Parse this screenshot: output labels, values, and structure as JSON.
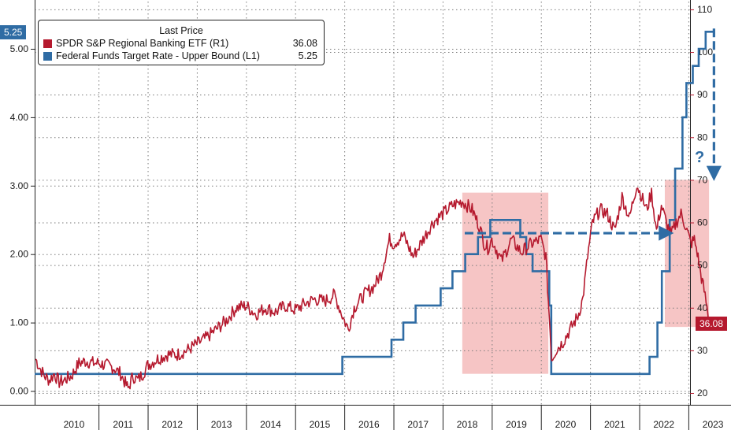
{
  "chart_data": {
    "type": "line",
    "legend": {
      "title": "Last Price",
      "placement": "top-left",
      "entries": [
        {
          "name": "SPDR S&P Regional Banking ETF  (R1)",
          "value": "36.08",
          "color": "#b5192e"
        },
        {
          "name": "Federal Funds Target Rate - Upper Bound  (L1)",
          "value": "5.25",
          "color": "#2f6ca4"
        }
      ]
    },
    "x_labels": [
      "2010",
      "2011",
      "2012",
      "2013",
      "2014",
      "2015",
      "2016",
      "2017",
      "2018",
      "2019",
      "2020",
      "2021",
      "2022",
      "2023"
    ],
    "left_axis": {
      "range": [
        -0.15,
        5.75
      ],
      "ticks": [
        "0.00",
        "1.00",
        "2.00",
        "3.00",
        "4.00",
        "5.00"
      ]
    },
    "right_axis": {
      "range": [
        18,
        111
      ],
      "ticks": [
        "20",
        "30",
        "40",
        "50",
        "60",
        "70",
        "80",
        "90",
        "100",
        "110"
      ]
    },
    "badges": {
      "left": "5.25",
      "right": "36.08"
    },
    "annotation": "?",
    "series": [
      {
        "name": "Federal Funds Target Rate - Upper Bound",
        "axis": "left",
        "color": "#2f6ca4",
        "x": [
          2009.7,
          2015.96,
          2016.96,
          2017.2,
          2017.45,
          2017.96,
          2018.2,
          2018.46,
          2018.72,
          2018.97,
          2019.58,
          2019.7,
          2019.83,
          2020.17,
          2020.21,
          2022.21,
          2022.37,
          2022.46,
          2022.62,
          2022.73,
          2022.88,
          2022.96,
          2023.09,
          2023.21,
          2023.35,
          2023.5
        ],
        "y": [
          0.25,
          0.5,
          0.75,
          1.0,
          1.25,
          1.5,
          1.75,
          2.0,
          2.25,
          2.5,
          2.25,
          2.0,
          1.75,
          1.25,
          0.25,
          0.5,
          1.0,
          1.75,
          2.5,
          3.25,
          4.0,
          4.5,
          4.75,
          5.0,
          5.25,
          5.25
        ]
      },
      {
        "name": "SPDR S&P Regional Banking ETF",
        "axis": "right",
        "color": "#b5192e",
        "x": [
          2009.72,
          2009.8,
          2009.9,
          2010.0,
          2010.1,
          2010.2,
          2010.3,
          2010.45,
          2010.6,
          2010.75,
          2010.9,
          2011.0,
          2011.15,
          2011.3,
          2011.45,
          2011.6,
          2011.7,
          2011.8,
          2011.9,
          2012.0,
          2012.2,
          2012.4,
          2012.6,
          2012.8,
          2013.0,
          2013.2,
          2013.4,
          2013.6,
          2013.8,
          2014.0,
          2014.2,
          2014.4,
          2014.6,
          2014.8,
          2015.0,
          2015.2,
          2015.4,
          2015.6,
          2015.8,
          2015.9,
          2016.0,
          2016.08,
          2016.2,
          2016.4,
          2016.6,
          2016.75,
          2016.85,
          2016.92,
          2017.0,
          2017.2,
          2017.4,
          2017.6,
          2017.8,
          2018.0,
          2018.2,
          2018.4,
          2018.6,
          2018.75,
          2018.85,
          2018.92,
          2019.0,
          2019.2,
          2019.4,
          2019.6,
          2019.8,
          2020.0,
          2020.1,
          2020.17,
          2020.22,
          2020.3,
          2020.45,
          2020.6,
          2020.75,
          2020.85,
          2020.95,
          2021.05,
          2021.2,
          2021.35,
          2021.5,
          2021.65,
          2021.8,
          2021.95,
          2022.05,
          2022.15,
          2022.25,
          2022.35,
          2022.45,
          2022.55,
          2022.65,
          2022.75,
          2022.85,
          2022.95,
          2023.05,
          2023.12,
          2023.18,
          2023.25,
          2023.32,
          2023.38,
          2023.44
        ],
        "y": [
          28,
          26,
          24,
          23,
          24.5,
          22.5,
          23,
          24,
          27,
          27.5,
          27,
          27,
          26.5,
          26,
          24.5,
          21,
          24,
          23,
          24.5,
          26.5,
          28,
          29,
          29,
          30,
          31.5,
          33,
          35,
          37,
          40,
          40.5,
          38.5,
          40,
          39,
          40.5,
          39.5,
          41,
          42,
          41.5,
          43,
          40,
          37,
          35,
          40,
          43,
          45,
          48,
          53,
          56,
          55,
          57,
          52,
          56,
          60,
          62,
          64,
          65,
          63,
          59,
          55,
          54,
          56,
          51,
          56,
          53,
          55,
          56,
          52,
          38,
          28,
          30,
          32,
          35,
          38,
          42,
          52,
          60,
          63,
          62,
          58,
          66,
          61,
          69,
          66,
          63,
          67,
          58,
          64,
          60,
          57,
          60,
          62,
          59,
          55,
          56,
          53,
          48,
          44,
          40,
          36
        ]
      }
    ],
    "highlight_regions": [
      {
        "x0": 2018.4,
        "x1": 2020.15,
        "y0": 24.5,
        "y1": 67,
        "axis": "right"
      },
      {
        "x0": 2022.52,
        "x1": 2023.42,
        "y0": 35.5,
        "y1": 70,
        "axis": "right"
      }
    ],
    "dashed_arrows": [
      {
        "x0": 2018.45,
        "y0": 57.5,
        "x1": 2022.55,
        "y1": 57.5,
        "axis": "right"
      },
      {
        "x0": 2023.52,
        "y0": 105.5,
        "x1": 2023.52,
        "y1": 71.5,
        "axis": "right"
      }
    ]
  }
}
